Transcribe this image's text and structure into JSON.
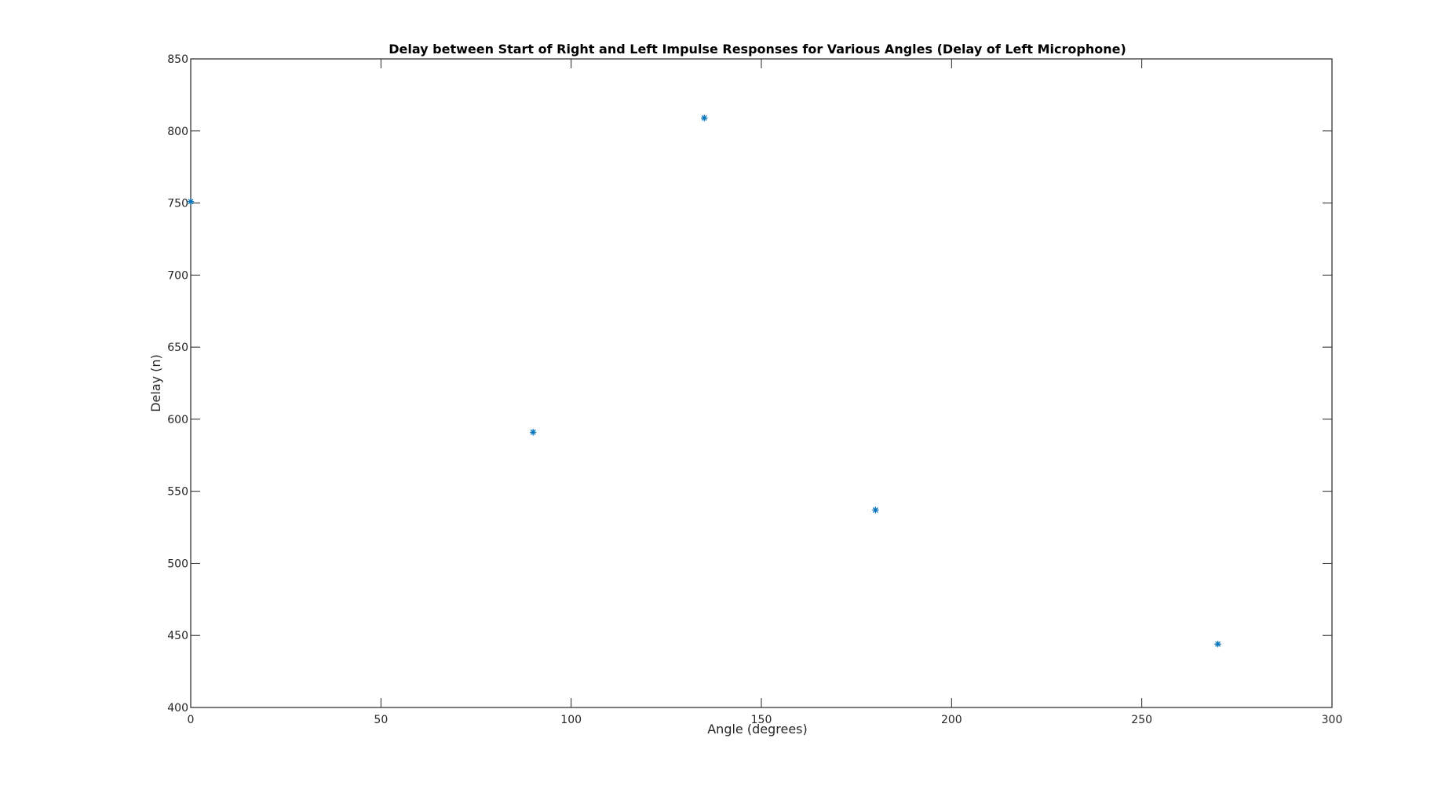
{
  "chart_data": {
    "type": "scatter",
    "title": "Delay between Start of Right and Left Impulse Responses for Various Angles (Delay of Left Microphone)",
    "xlabel": "Angle (degrees)",
    "ylabel": "Delay (n)",
    "xlim": [
      0,
      300
    ],
    "ylim": [
      400,
      850
    ],
    "xticks": [
      0,
      50,
      100,
      150,
      200,
      250,
      300
    ],
    "yticks": [
      400,
      450,
      500,
      550,
      600,
      650,
      700,
      750,
      800,
      850
    ],
    "grid": false,
    "marker": "asterisk",
    "marker_color": "#0072BD",
    "axis_color": "#262626",
    "series": [
      {
        "x": [
          0,
          90,
          135,
          180,
          270
        ],
        "y": [
          751,
          591,
          809,
          537,
          444
        ]
      }
    ]
  }
}
